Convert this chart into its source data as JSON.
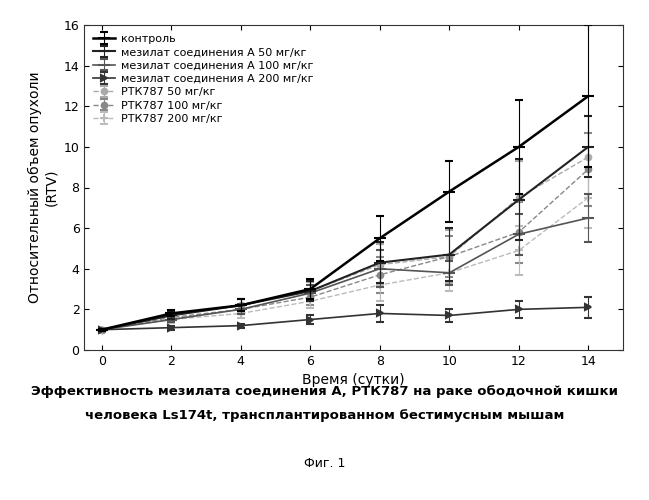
{
  "x": [
    0,
    2,
    4,
    6,
    8,
    10,
    12,
    14
  ],
  "series": {
    "control": {
      "label": "контроль",
      "y": [
        1.0,
        1.8,
        2.2,
        3.0,
        5.5,
        7.8,
        10.0,
        12.5
      ],
      "yerr": [
        0.05,
        0.15,
        0.3,
        0.5,
        1.1,
        1.5,
        2.3,
        3.5
      ],
      "color": "#000000",
      "linestyle": "-",
      "marker": "_",
      "markersize": 8,
      "linewidth": 1.8,
      "zorder": 5
    },
    "mes50": {
      "label": "мезилат соединения А 50 мг/кг",
      "y": [
        1.0,
        1.7,
        2.2,
        2.9,
        4.3,
        4.7,
        7.4,
        10.0
      ],
      "yerr": [
        0.05,
        0.15,
        0.3,
        0.5,
        1.0,
        1.3,
        2.0,
        1.5
      ],
      "color": "#222222",
      "linestyle": "-",
      "marker": "_",
      "markersize": 8,
      "linewidth": 1.5,
      "zorder": 4
    },
    "mes100": {
      "label": "мезилат соединения А 100 мг/кг",
      "y": [
        1.0,
        1.5,
        2.0,
        2.8,
        4.0,
        3.8,
        5.7,
        6.5
      ],
      "yerr": [
        0.05,
        0.1,
        0.25,
        0.4,
        0.9,
        0.6,
        1.0,
        1.2
      ],
      "color": "#555555",
      "linestyle": "-",
      "marker": "_",
      "markersize": 8,
      "linewidth": 1.2,
      "zorder": 3
    },
    "mes200": {
      "label": "мезилат соединения А 200 мг/кг",
      "y": [
        1.0,
        1.1,
        1.2,
        1.5,
        1.8,
        1.7,
        2.0,
        2.1
      ],
      "yerr": [
        0.05,
        0.1,
        0.1,
        0.2,
        0.4,
        0.3,
        0.4,
        0.5
      ],
      "color": "#333333",
      "linestyle": "-",
      "marker": ">",
      "markersize": 5,
      "linewidth": 1.2,
      "zorder": 3
    },
    "rtk50": {
      "label": "РТК787 50 мг/кг",
      "y": [
        1.0,
        1.7,
        2.2,
        2.9,
        4.2,
        4.6,
        7.5,
        9.5
      ],
      "yerr": [
        0.05,
        0.15,
        0.3,
        0.45,
        1.0,
        1.3,
        1.8,
        2.0
      ],
      "color": "#aaaaaa",
      "linestyle": "--",
      "marker": "o",
      "markersize": 4,
      "linewidth": 1.0,
      "zorder": 2
    },
    "rtk100": {
      "label": "РТК787 100 мг/кг",
      "y": [
        1.0,
        1.6,
        2.0,
        2.6,
        3.7,
        4.6,
        5.8,
        8.9
      ],
      "yerr": [
        0.05,
        0.15,
        0.25,
        0.4,
        0.9,
        1.0,
        1.5,
        1.8
      ],
      "color": "#888888",
      "linestyle": "--",
      "marker": "o",
      "markersize": 4,
      "linewidth": 1.0,
      "zorder": 2
    },
    "rtk200": {
      "label": "РТК787 200 мг/кг",
      "y": [
        1.0,
        1.5,
        1.8,
        2.4,
        3.2,
        3.8,
        4.9,
        7.5
      ],
      "yerr": [
        0.05,
        0.15,
        0.2,
        0.35,
        0.8,
        0.9,
        1.2,
        1.5
      ],
      "color": "#bbbbbb",
      "linestyle": "--",
      "marker": "+",
      "markersize": 6,
      "linewidth": 1.0,
      "zorder": 2
    }
  },
  "xlim": [
    -0.5,
    15.0
  ],
  "ylim": [
    0,
    16
  ],
  "xticks": [
    0,
    2,
    4,
    6,
    8,
    10,
    12,
    14
  ],
  "yticks": [
    0,
    2,
    4,
    6,
    8,
    10,
    12,
    14,
    16
  ],
  "xlabel": "Время (сутки)",
  "ylabel": "Относительный объем опухоли\n(RTV)",
  "title_line1": "Эффективность мезилата соединения А, РТК787 на раке ободочной кишки",
  "title_line2": "человека Ls174t, трансплантированном бестимусным мышам",
  "caption": "Фиг. 1",
  "background_color": "#ffffff",
  "legend_fontsize": 8,
  "axis_fontsize": 10,
  "title_fontsize": 9.5,
  "caption_fontsize": 9
}
